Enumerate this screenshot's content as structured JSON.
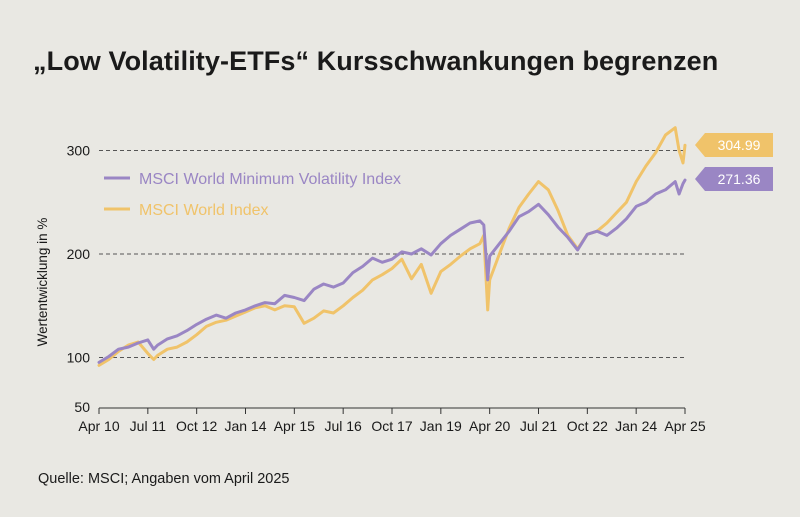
{
  "title": "„Low Volatility-ETFs“ Kursschwankungen begrenzen",
  "source": "Quelle: MSCI; Angaben vom April 2025",
  "colors": {
    "min_vol": "#9a86c4",
    "world": "#f0c36a",
    "grid": "#555555",
    "axis": "#333333"
  },
  "chart_data": {
    "type": "line",
    "title": "„Low Volatility-ETFs“ Kursschwankungen begrenzen",
    "xlabel": "",
    "ylabel": "Wertentwicklung in %",
    "ylim": [
      50,
      325
    ],
    "y_ticks": [
      50,
      100,
      200,
      300
    ],
    "y_tick_labels": [
      "50",
      "100",
      "200",
      "300"
    ],
    "gridlines_at": [
      100,
      200,
      300
    ],
    "x_ticks": [
      "Apr 10",
      "Jul 11",
      "Oct 12",
      "Jan 14",
      "Apr 15",
      "Jul 16",
      "Oct 17",
      "Jan 19",
      "Apr 20",
      "Jul 21",
      "Oct 22",
      "Jan 24",
      "Apr 25"
    ],
    "legend_position": "top-left",
    "series": [
      {
        "name": "MSCI World Minimum Volatility Index",
        "color": "#9a86c4",
        "end_label": "271.36",
        "x": [
          2010.25,
          2010.5,
          2010.75,
          2011,
          2011.25,
          2011.5,
          2011.65,
          2011.75,
          2012,
          2012.25,
          2012.5,
          2012.75,
          2013,
          2013.25,
          2013.5,
          2013.75,
          2014,
          2014.25,
          2014.5,
          2014.75,
          2015,
          2015.25,
          2015.5,
          2015.75,
          2016,
          2016.25,
          2016.5,
          2016.75,
          2017,
          2017.25,
          2017.5,
          2017.75,
          2018,
          2018.25,
          2018.5,
          2018.75,
          2019,
          2019.25,
          2019.5,
          2019.75,
          2020,
          2020.1,
          2020.2,
          2020.25,
          2020.5,
          2020.75,
          2021,
          2021.25,
          2021.5,
          2021.75,
          2022,
          2022.25,
          2022.5,
          2022.75,
          2023,
          2023.25,
          2023.5,
          2023.75,
          2024,
          2024.25,
          2024.5,
          2024.75,
          2025,
          2025.1,
          2025.2,
          2025.25
        ],
        "values": [
          95,
          101,
          108,
          110,
          114,
          117,
          108,
          112,
          118,
          121,
          126,
          132,
          137,
          141,
          138,
          143,
          146,
          150,
          153,
          152,
          160,
          158,
          155,
          166,
          171,
          168,
          172,
          182,
          188,
          196,
          192,
          195,
          202,
          200,
          205,
          199,
          210,
          218,
          224,
          230,
          232,
          228,
          175,
          198,
          210,
          222,
          236,
          241,
          248,
          238,
          226,
          216,
          204,
          219,
          222,
          218,
          225,
          234,
          246,
          250,
          258,
          262,
          270,
          258,
          268,
          271.36
        ]
      },
      {
        "name": "MSCI World Index",
        "color": "#f0c36a",
        "end_label": "304.99",
        "x": [
          2010.25,
          2010.5,
          2010.75,
          2011,
          2011.25,
          2011.5,
          2011.65,
          2011.75,
          2012,
          2012.25,
          2012.5,
          2012.75,
          2013,
          2013.25,
          2013.5,
          2013.75,
          2014,
          2014.25,
          2014.5,
          2014.75,
          2015,
          2015.25,
          2015.5,
          2015.75,
          2016,
          2016.25,
          2016.5,
          2016.75,
          2017,
          2017.25,
          2017.5,
          2017.75,
          2018,
          2018.25,
          2018.5,
          2018.75,
          2019,
          2019.25,
          2019.5,
          2019.75,
          2020,
          2020.1,
          2020.2,
          2020.25,
          2020.5,
          2020.75,
          2021,
          2021.25,
          2021.5,
          2021.75,
          2022,
          2022.25,
          2022.5,
          2022.75,
          2023,
          2023.25,
          2023.5,
          2023.75,
          2024,
          2024.25,
          2024.5,
          2024.75,
          2025,
          2025.1,
          2025.2,
          2025.25
        ],
        "values": [
          92,
          98,
          106,
          112,
          115,
          104,
          98,
          102,
          108,
          110,
          115,
          122,
          130,
          134,
          136,
          140,
          144,
          148,
          150,
          146,
          150,
          149,
          133,
          138,
          145,
          143,
          150,
          158,
          165,
          175,
          180,
          186,
          195,
          176,
          190,
          162,
          183,
          190,
          198,
          205,
          210,
          218,
          146,
          175,
          200,
          225,
          245,
          258,
          270,
          262,
          242,
          218,
          205,
          219,
          222,
          230,
          240,
          250,
          270,
          285,
          298,
          315,
          322,
          300,
          288,
          304.99
        ]
      }
    ]
  }
}
